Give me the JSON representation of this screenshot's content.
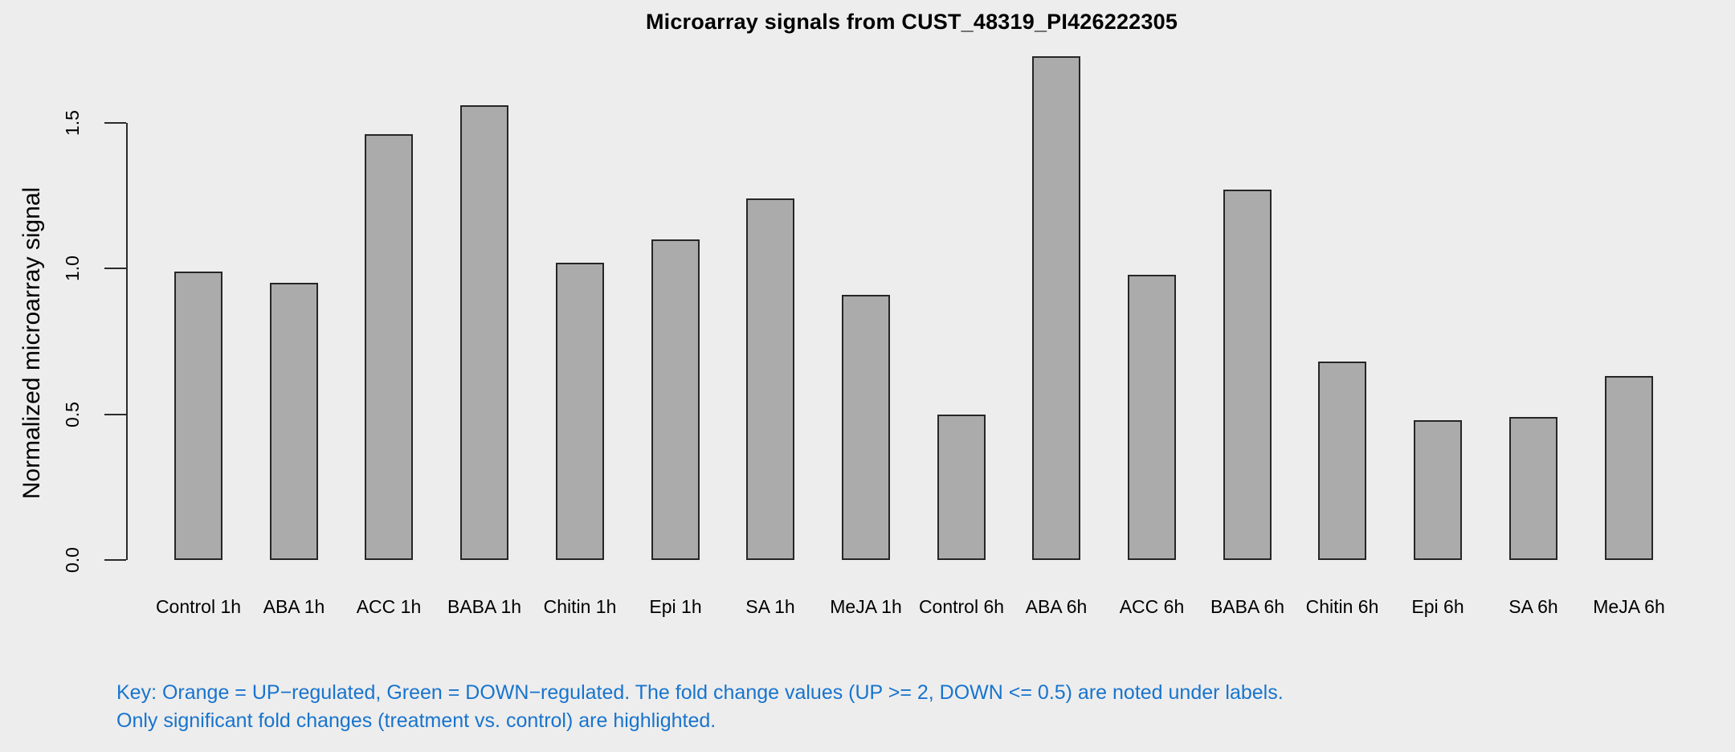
{
  "chart_data": {
    "type": "bar",
    "title": "Microarray signals from CUST_48319_PI426222305",
    "xlabel": "",
    "ylabel": "Normalized microarray signal",
    "categories": [
      "Control 1h",
      "ABA 1h",
      "ACC 1h",
      "BABA 1h",
      "Chitin 1h",
      "Epi 1h",
      "SA 1h",
      "MeJA 1h",
      "Control 6h",
      "ABA 6h",
      "ACC 6h",
      "BABA 6h",
      "Chitin 6h",
      "Epi 6h",
      "SA 6h",
      "MeJA 6h"
    ],
    "values": [
      0.99,
      0.95,
      1.46,
      1.56,
      1.02,
      1.1,
      1.24,
      0.91,
      0.5,
      1.73,
      0.98,
      1.27,
      0.68,
      0.48,
      0.49,
      0.63
    ],
    "yticks": [
      0.0,
      0.5,
      1.0,
      1.5
    ],
    "ytick_labels": [
      "0.0",
      "0.5",
      "1.0",
      "1.5"
    ],
    "ylim": [
      0,
      1.73
    ],
    "grid": false,
    "legend": null,
    "bar_fill": "#ababab",
    "bar_border": "#262626"
  },
  "footnote": {
    "line1": "Key: Orange = UP−regulated, Green = DOWN−regulated. The fold change values (UP >= 2, DOWN <= 0.5) are noted under labels.",
    "line2": "Only significant fold changes (treatment vs. control) are highlighted.",
    "color": "#1874CD"
  },
  "colors": {
    "background": "#ededed",
    "axis": "#2b2b2b",
    "text": "#000000"
  }
}
